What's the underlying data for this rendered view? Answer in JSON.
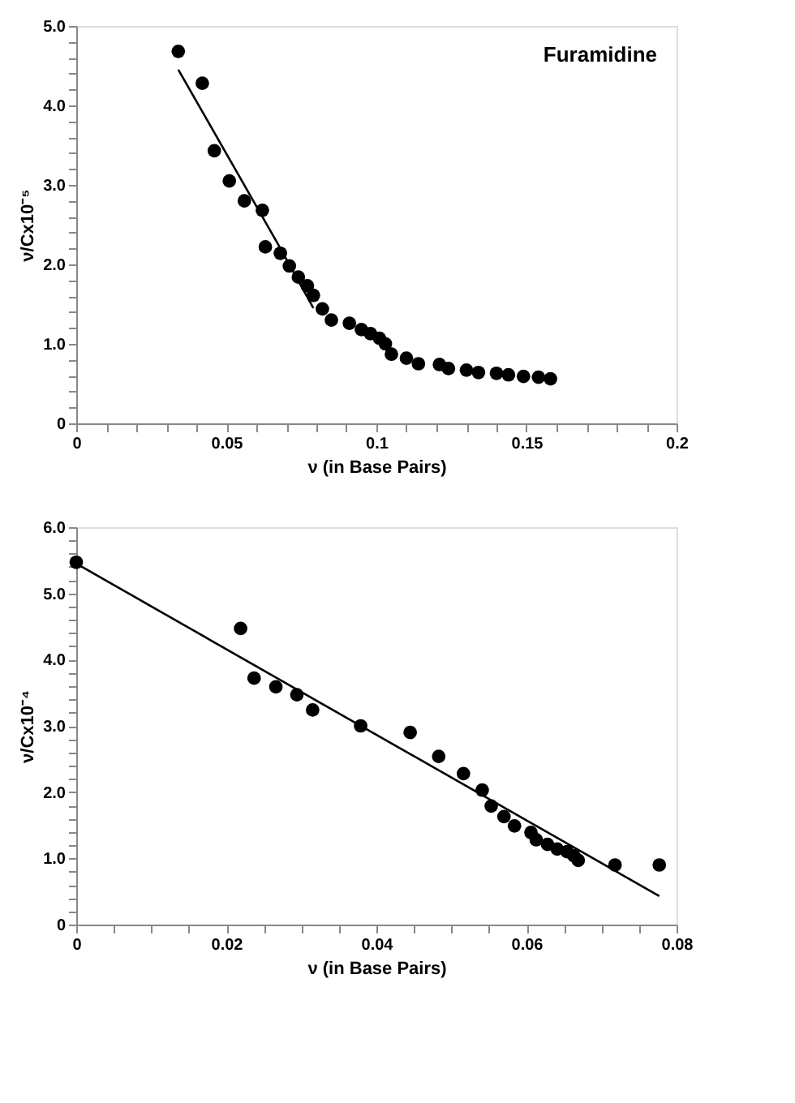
{
  "chart_data": [
    {
      "type": "scatter",
      "xlabel": "ν (in Base Pairs)",
      "ylabel": "ν/Cx10⁻⁵",
      "annotations": [
        "Furamidine"
      ],
      "xlim": [
        0,
        0.2
      ],
      "ylim": [
        0,
        5
      ],
      "xticks": [
        0,
        {
          "value": 0.01,
          "label": null
        },
        {
          "value": 0.02,
          "label": null
        },
        {
          "value": 0.03,
          "label": null
        },
        {
          "value": 0.04,
          "label": null
        },
        0.05,
        {
          "value": 0.06,
          "label": null
        },
        {
          "value": 0.07,
          "label": null
        },
        {
          "value": 0.08,
          "label": null
        },
        {
          "value": 0.09,
          "label": null
        },
        0.1,
        {
          "value": 0.11,
          "label": null
        },
        {
          "value": 0.12,
          "label": null
        },
        {
          "value": 0.13,
          "label": null
        },
        {
          "value": 0.14,
          "label": null
        },
        0.15,
        {
          "value": 0.16,
          "label": null
        },
        {
          "value": 0.17,
          "label": null
        },
        {
          "value": 0.18,
          "label": null
        },
        {
          "value": 0.19,
          "label": null
        },
        0.2
      ],
      "yticks": [
        0,
        {
          "value": 0.2,
          "label": null
        },
        {
          "value": 0.4,
          "label": null
        },
        {
          "value": 0.6,
          "label": null
        },
        {
          "value": 0.8,
          "label": null
        },
        {
          "value": 1,
          "label": "1.0"
        },
        {
          "value": 1.2,
          "label": null
        },
        {
          "value": 1.4,
          "label": null
        },
        {
          "value": 1.6,
          "label": null
        },
        {
          "value": 1.8,
          "label": null
        },
        {
          "value": 2,
          "label": "2.0"
        },
        {
          "value": 2.2,
          "label": null
        },
        {
          "value": 2.4,
          "label": null
        },
        {
          "value": 2.6,
          "label": null
        },
        {
          "value": 2.8,
          "label": null
        },
        {
          "value": 3,
          "label": "3.0"
        },
        {
          "value": 3.2,
          "label": null
        },
        {
          "value": 3.4,
          "label": null
        },
        {
          "value": 3.6,
          "label": null
        },
        {
          "value": 3.8,
          "label": null
        },
        {
          "value": 4,
          "label": "4.0"
        },
        {
          "value": 4.2,
          "label": null
        },
        {
          "value": 4.4,
          "label": null
        },
        {
          "value": 4.6,
          "label": null
        },
        {
          "value": 4.8,
          "label": null
        },
        {
          "value": 5,
          "label": "5.0"
        }
      ],
      "series": [
        {
          "marker": "circle",
          "color": "#000000",
          "x": [
            0.034,
            0.042,
            0.046,
            0.051,
            0.056,
            0.062,
            0.063,
            0.068,
            0.071,
            0.074,
            0.077,
            0.079,
            0.082,
            0.085,
            0.091,
            0.095,
            0.098,
            0.101,
            0.103,
            0.105,
            0.11,
            0.114,
            0.121,
            0.124,
            0.13,
            0.134,
            0.14,
            0.144,
            0.149,
            0.154,
            0.158
          ],
          "values": [
            4.68,
            4.28,
            3.43,
            3.05,
            2.8,
            2.68,
            2.22,
            2.14,
            1.98,
            1.84,
            1.73,
            1.61,
            1.44,
            1.3,
            1.26,
            1.18,
            1.13,
            1.07,
            1.0,
            0.87,
            0.82,
            0.75,
            0.74,
            0.69,
            0.67,
            0.64,
            0.63,
            0.61,
            0.59,
            0.58,
            0.56
          ]
        },
        {
          "type": "line",
          "color": "#000000",
          "line_style": "solid",
          "x": [
            0.034,
            0.067,
            0.079
          ],
          "values": [
            4.45,
            2.27,
            1.45
          ]
        }
      ]
    },
    {
      "type": "scatter",
      "xlabel": "ν (in Base Pairs)",
      "ylabel": "ν/Cx10⁻⁴",
      "xlim": [
        0,
        0.08
      ],
      "ylim": [
        0,
        6
      ],
      "xticks": [
        0,
        {
          "value": 0.005,
          "label": null
        },
        {
          "value": 0.01,
          "label": null
        },
        {
          "value": 0.015,
          "label": null
        },
        0.02,
        {
          "value": 0.025,
          "label": null
        },
        {
          "value": 0.03,
          "label": null
        },
        {
          "value": 0.035,
          "label": null
        },
        0.04,
        {
          "value": 0.045,
          "label": null
        },
        {
          "value": 0.05,
          "label": null
        },
        {
          "value": 0.055,
          "label": null
        },
        0.06,
        {
          "value": 0.065,
          "label": null
        },
        {
          "value": 0.07,
          "label": null
        },
        {
          "value": 0.075,
          "label": null
        },
        0.08
      ],
      "yticks": [
        0,
        {
          "value": 0.2,
          "label": null
        },
        {
          "value": 0.4,
          "label": null
        },
        {
          "value": 0.6,
          "label": null
        },
        {
          "value": 0.8,
          "label": null
        },
        {
          "value": 1,
          "label": "1.0"
        },
        {
          "value": 1.2,
          "label": null
        },
        {
          "value": 1.4,
          "label": null
        },
        {
          "value": 1.6,
          "label": null
        },
        {
          "value": 1.8,
          "label": null
        },
        {
          "value": 2,
          "label": "2.0"
        },
        {
          "value": 2.2,
          "label": null
        },
        {
          "value": 2.4,
          "label": null
        },
        {
          "value": 2.6,
          "label": null
        },
        {
          "value": 2.8,
          "label": null
        },
        {
          "value": 3,
          "label": "3.0"
        },
        {
          "value": 3.2,
          "label": null
        },
        {
          "value": 3.4,
          "label": null
        },
        {
          "value": 3.6,
          "label": null
        },
        {
          "value": 3.8,
          "label": null
        },
        {
          "value": 4,
          "label": "4.0"
        },
        {
          "value": 4.2,
          "label": null
        },
        {
          "value": 4.4,
          "label": null
        },
        {
          "value": 4.6,
          "label": null
        },
        {
          "value": 4.8,
          "label": null
        },
        {
          "value": 5,
          "label": "5.0"
        },
        {
          "value": 5.2,
          "label": null
        },
        {
          "value": 5.4,
          "label": null
        },
        {
          "value": 5.6,
          "label": null
        },
        {
          "value": 5.8,
          "label": null
        },
        {
          "value": 6,
          "label": "6.0"
        }
      ],
      "series": [
        {
          "marker": "circle",
          "color": "#000000",
          "x": [
            0,
            0.0219,
            0.0237,
            0.0266,
            0.0294,
            0.0315,
            0.0379,
            0.0445,
            0.0483,
            0.0516,
            0.0541,
            0.0553,
            0.057,
            0.0584,
            0.0606,
            0.0613,
            0.0628,
            0.0641,
            0.0654,
            0.0663,
            0.0669,
            0.0718,
            0.0777
          ],
          "values": [
            5.47,
            4.47,
            3.72,
            3.59,
            3.47,
            3.24,
            3.0,
            2.9,
            2.54,
            2.28,
            2.03,
            1.79,
            1.63,
            1.49,
            1.39,
            1.28,
            1.21,
            1.14,
            1.1,
            1.04,
            0.97,
            0.9,
            0.9
          ]
        },
        {
          "type": "line",
          "color": "#000000",
          "line_style": "solid",
          "x": [
            0,
            0.0777
          ],
          "values": [
            5.45,
            0.43
          ]
        }
      ]
    }
  ]
}
